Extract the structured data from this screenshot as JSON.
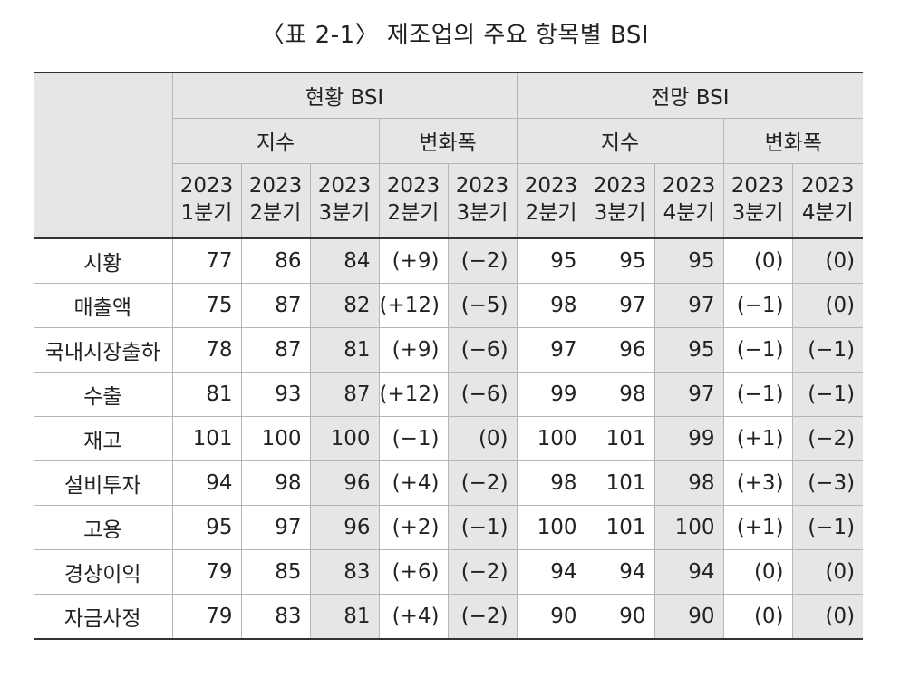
{
  "title": "〈표 2-1〉 제조업의 주요 항목별 BSI",
  "groups": {
    "current": "현황 BSI",
    "outlook": "전망 BSI"
  },
  "subgroups": {
    "current_index": "지수",
    "current_change": "변화폭",
    "outlook_index": "지수",
    "outlook_change": "변화폭"
  },
  "columns": [
    {
      "year": "2023",
      "quarter": "1분기"
    },
    {
      "year": "2023",
      "quarter": "2분기"
    },
    {
      "year": "2023",
      "quarter": "3분기"
    },
    {
      "year": "2023",
      "quarter": "2분기"
    },
    {
      "year": "2023",
      "quarter": "3분기"
    },
    {
      "year": "2023",
      "quarter": "2분기"
    },
    {
      "year": "2023",
      "quarter": "3분기"
    },
    {
      "year": "2023",
      "quarter": "4분기"
    },
    {
      "year": "2023",
      "quarter": "3분기"
    },
    {
      "year": "2023",
      "quarter": "4분기"
    }
  ],
  "rows": [
    {
      "label": "시황",
      "values": [
        "77",
        "86",
        "84",
        "(+9)",
        "(−2)",
        "95",
        "95",
        "95",
        "(0)",
        "(0)"
      ]
    },
    {
      "label": "매출액",
      "values": [
        "75",
        "87",
        "82",
        "(+12)",
        "(−5)",
        "98",
        "97",
        "97",
        "(−1)",
        "(0)"
      ]
    },
    {
      "label": "국내시장출하",
      "values": [
        "78",
        "87",
        "81",
        "(+9)",
        "(−6)",
        "97",
        "96",
        "95",
        "(−1)",
        "(−1)"
      ]
    },
    {
      "label": "수출",
      "values": [
        "81",
        "93",
        "87",
        "(+12)",
        "(−6)",
        "99",
        "98",
        "97",
        "(−1)",
        "(−1)"
      ]
    },
    {
      "label": "재고",
      "values": [
        "101",
        "100",
        "100",
        "(−1)",
        "(0)",
        "100",
        "101",
        "99",
        "(+1)",
        "(−2)"
      ]
    },
    {
      "label": "설비투자",
      "values": [
        "94",
        "98",
        "96",
        "(+4)",
        "(−2)",
        "98",
        "101",
        "98",
        "(+3)",
        "(−3)"
      ]
    },
    {
      "label": "고용",
      "values": [
        "95",
        "97",
        "96",
        "(+2)",
        "(−1)",
        "100",
        "101",
        "100",
        "(+1)",
        "(−1)"
      ]
    },
    {
      "label": "경상이익",
      "values": [
        "79",
        "85",
        "83",
        "(+6)",
        "(−2)",
        "94",
        "94",
        "94",
        "(0)",
        "(0)"
      ]
    },
    {
      "label": "자금사정",
      "values": [
        "79",
        "83",
        "81",
        "(+4)",
        "(−2)",
        "90",
        "90",
        "90",
        "(0)",
        "(0)"
      ]
    }
  ],
  "shaded_columns": [
    2,
    4,
    7,
    9
  ],
  "colors": {
    "header_bg": "#e6e6e6",
    "border": "#b5b5b5",
    "rule": "#333333"
  }
}
